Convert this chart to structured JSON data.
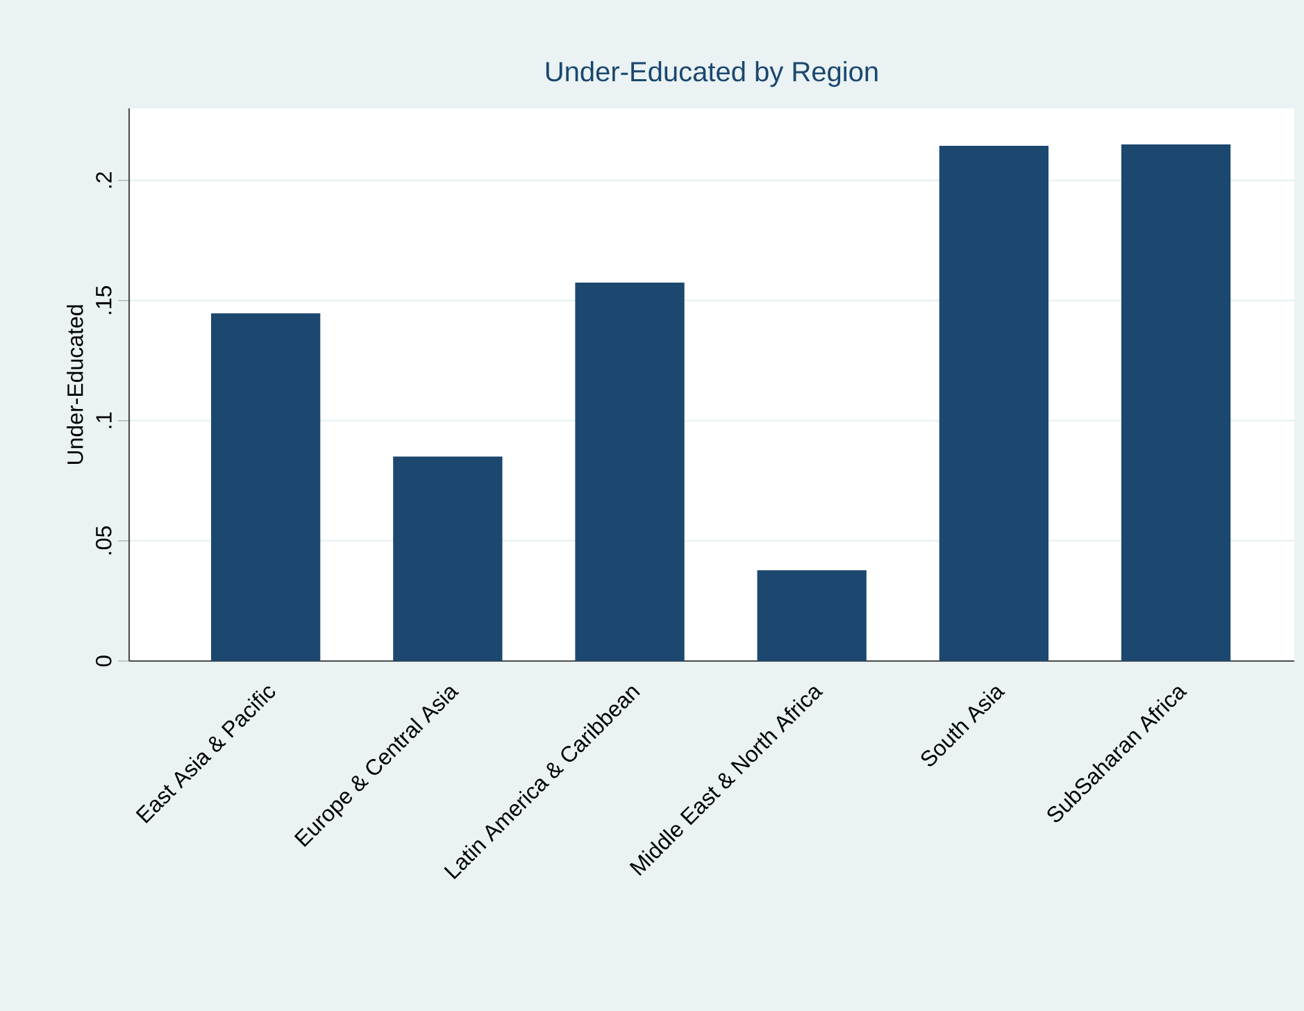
{
  "chart_data": {
    "type": "bar",
    "title": "Under-Educated by Region",
    "ylabel": "Under-Educated",
    "categories": [
      "East Asia & Pacific",
      "Europe & Central Asia",
      "Latin America & Caribbean",
      "Middle East & North Africa",
      "South Asia",
      "SubSaharan Africa"
    ],
    "values": [
      0.1447,
      0.0851,
      0.1575,
      0.0378,
      0.2144,
      0.215
    ],
    "color": "#1c4870",
    "ylim": [
      0,
      0.23
    ],
    "yticks": [
      {
        "value": 0,
        "label": "0"
      },
      {
        "value": 0.05,
        "label": ".05"
      },
      {
        "value": 0.1,
        "label": ".1"
      },
      {
        "value": 0.15,
        "label": ".15"
      },
      {
        "value": 0.2,
        "label": ".2"
      }
    ],
    "grid": "y"
  }
}
